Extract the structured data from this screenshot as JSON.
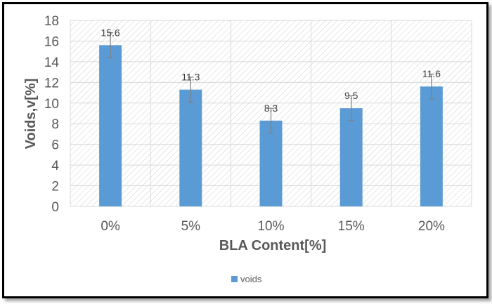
{
  "chart_data": {
    "type": "bar",
    "categories": [
      "0%",
      "5%",
      "10%",
      "15%",
      "20%"
    ],
    "series": [
      {
        "name": "voids",
        "values": [
          15.6,
          11.3,
          8.3,
          9.5,
          11.6
        ],
        "labels": [
          "15.6",
          "11.3",
          "8.3",
          "9.5",
          "11.6"
        ]
      }
    ],
    "error_bars": [
      1.2,
      1.2,
      1.2,
      1.2,
      1.2
    ],
    "xlabel": "BLA Content[%]",
    "ylabel": "Voids,v[%]",
    "ylim": [
      0,
      18
    ],
    "yticks": [
      "0",
      "2",
      "4",
      "6",
      "8",
      "10",
      "12",
      "14",
      "16",
      "18"
    ],
    "grid": true,
    "legend": "bottom",
    "colors": {
      "bar": "#5B9BD5",
      "grid": "#d9d9d9",
      "hatch": "#cfcfcf",
      "error": "#7f7f7f"
    }
  }
}
